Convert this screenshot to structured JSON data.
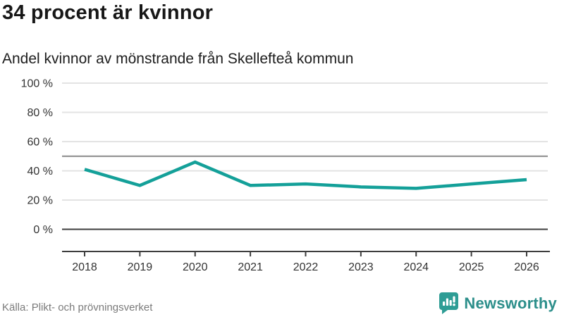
{
  "header": {
    "title": "34 procent är kvinnor",
    "subtitle": "Andel kvinnor av mönstrande från Skellefteå kommun"
  },
  "chart_data": {
    "type": "line",
    "title": "34 procent är kvinnor",
    "subtitle": "Andel kvinnor av mönstrande från Skellefteå kommun",
    "x": [
      2018,
      2019,
      2020,
      2021,
      2022,
      2023,
      2024,
      2025,
      2026
    ],
    "values": [
      41,
      30,
      46,
      30,
      31,
      29,
      28,
      31,
      34
    ],
    "series_name": "Andel kvinnor av mönstrande",
    "unit": "%",
    "ylim": [
      0,
      100
    ],
    "yticks": [
      0,
      20,
      40,
      60,
      80,
      100
    ],
    "ytick_labels": [
      "0 %",
      "20 %",
      "40 %",
      "60 %",
      "80 %",
      "100 %"
    ],
    "reference_line": 50,
    "grid": true,
    "legend": "none",
    "line_color": "#14a099"
  },
  "footer": {
    "source": "Källa: Plikt- och prövningsverket",
    "brand": "Newsworthy"
  },
  "colors": {
    "line": "#14a099",
    "grid": "#e3e3e3",
    "reference": "#8a8a8a",
    "axis": "#3d3d3d",
    "brand_teal": "#2d8f8b",
    "logo_teal": "#2e9d95",
    "source_gray": "#7b7b7b"
  }
}
